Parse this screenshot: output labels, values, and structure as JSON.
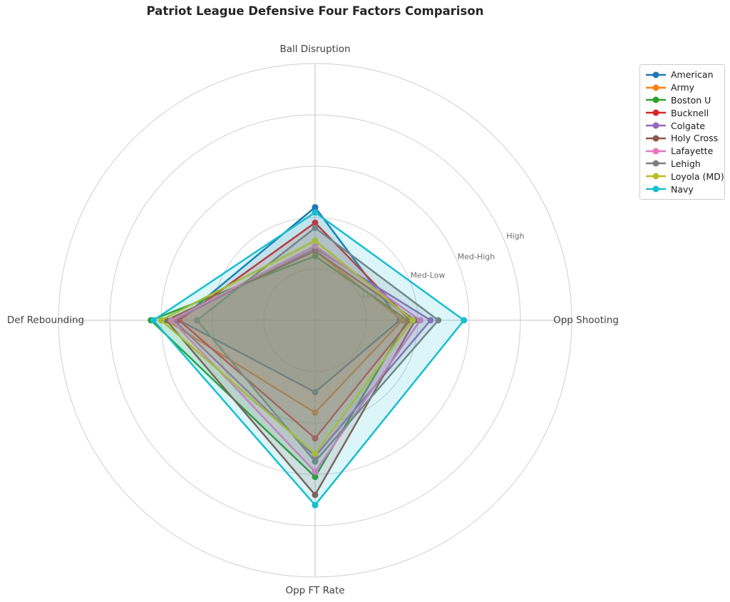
{
  "page": {
    "background": "#ffffff"
  },
  "chart_data": {
    "type": "radar",
    "title": "Patriot League Defensive Four Factors Comparison",
    "axes": [
      "Ball Disruption",
      "Opp Shooting",
      "Opp FT Rate",
      "Def Rebounding"
    ],
    "ring_labels": [
      "Low",
      "Med-Low",
      "Med-High",
      "High"
    ],
    "ring_values": [
      0.2,
      0.4,
      0.6,
      0.8
    ],
    "rmax": 1.0,
    "grid": true,
    "grid_color": "#cfcfcf",
    "legend_position": "upper right",
    "fill_opacity": 0.15,
    "series": [
      {
        "name": "American",
        "color": "#1f77b4",
        "values": [
          0.44,
          0.33,
          0.28,
          0.53
        ]
      },
      {
        "name": "Army",
        "color": "#ff7f0e",
        "values": [
          0.27,
          0.34,
          0.36,
          0.58
        ]
      },
      {
        "name": "Boston U",
        "color": "#2ca02c",
        "values": [
          0.25,
          0.36,
          0.61,
          0.64
        ]
      },
      {
        "name": "Bucknell",
        "color": "#d62728",
        "values": [
          0.38,
          0.37,
          0.46,
          0.53
        ]
      },
      {
        "name": "Colgate",
        "color": "#9467bd",
        "values": [
          0.28,
          0.45,
          0.53,
          0.55
        ]
      },
      {
        "name": "Holy Cross",
        "color": "#8c564b",
        "values": [
          0.27,
          0.39,
          0.68,
          0.58
        ]
      },
      {
        "name": "Lafayette",
        "color": "#e377c2",
        "values": [
          0.29,
          0.41,
          0.59,
          0.56
        ]
      },
      {
        "name": "Lehigh",
        "color": "#7f7f7f",
        "values": [
          0.36,
          0.48,
          0.55,
          0.46
        ]
      },
      {
        "name": "Loyola (MD)",
        "color": "#bcbd22",
        "values": [
          0.31,
          0.38,
          0.52,
          0.6
        ]
      },
      {
        "name": "Navy",
        "color": "#17becf",
        "values": [
          0.42,
          0.58,
          0.72,
          0.63
        ]
      }
    ]
  }
}
